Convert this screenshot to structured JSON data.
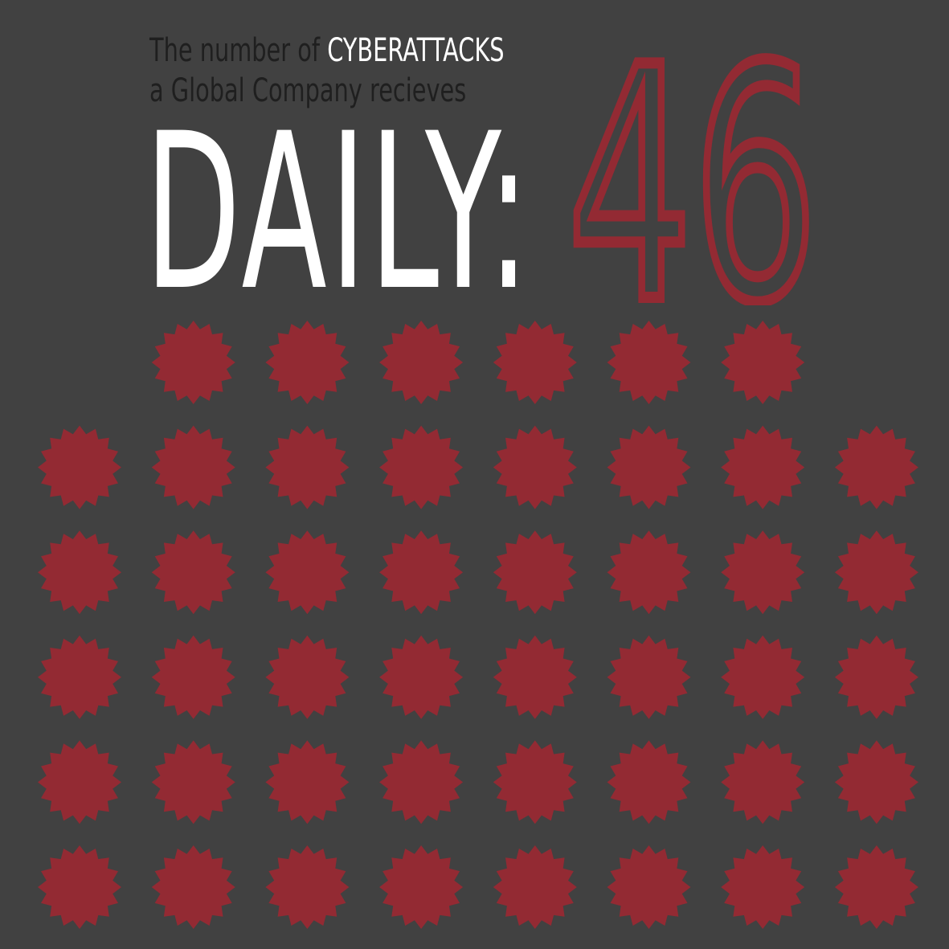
{
  "headline": {
    "line1_prefix": "The number of ",
    "line1_highlight": "CYBERATTACKS",
    "line2": "a Global Company recieves",
    "daily_word": "DAILY",
    "colon": ":",
    "count": "46"
  },
  "colors": {
    "background": "#414141",
    "accent": "#932a33",
    "highlight_text": "#ffffff",
    "body_text": "#1f1f1f"
  },
  "pictogram": {
    "icon": "burst-icon",
    "total": 46,
    "rows": [
      6,
      8,
      8,
      8,
      8,
      8
    ]
  }
}
